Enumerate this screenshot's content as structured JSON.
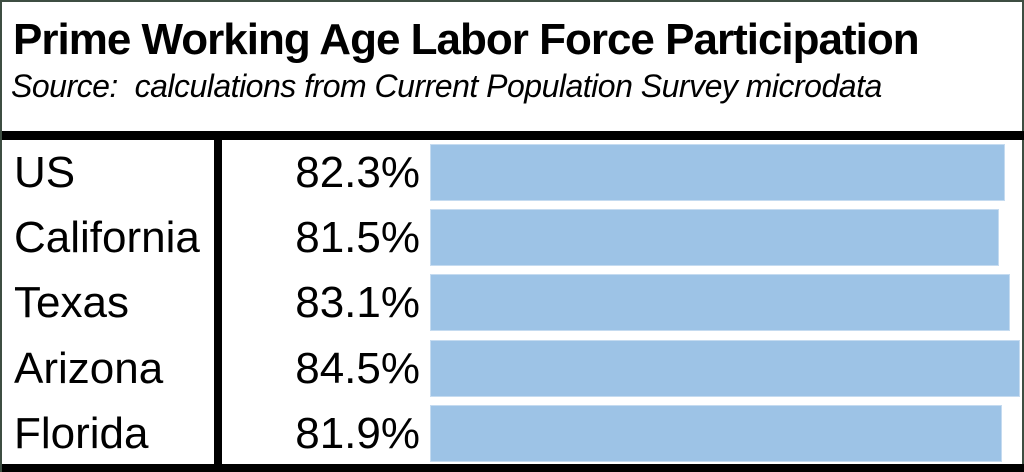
{
  "header": {
    "title": "Prime Working Age Labor Force Participation",
    "source": "Source:  calculations from Current Population Survey microdata"
  },
  "chart_data": {
    "type": "bar",
    "orientation": "horizontal",
    "title": "Prime Working Age Labor Force Participation",
    "subtitle": "Source:  calculations from Current Population Survey microdata",
    "categories": [
      "US",
      "California",
      "Texas",
      "Arizona",
      "Florida"
    ],
    "values": [
      82.3,
      81.5,
      83.1,
      84.5,
      81.9
    ],
    "value_labels": [
      "82.3%",
      "81.5%",
      "83.1%",
      "84.5%",
      "81.9%"
    ],
    "xlim": [
      0,
      84.5
    ],
    "grid": false,
    "legend": false,
    "bar_color": "#9DC3E6"
  },
  "colors": {
    "bar_fill": "#9DC3E6",
    "bar_edge": "#C5DBF0",
    "rule": "#000000",
    "frame": "#3E4E42",
    "text": "#000000",
    "background": "#FFFFFF"
  }
}
